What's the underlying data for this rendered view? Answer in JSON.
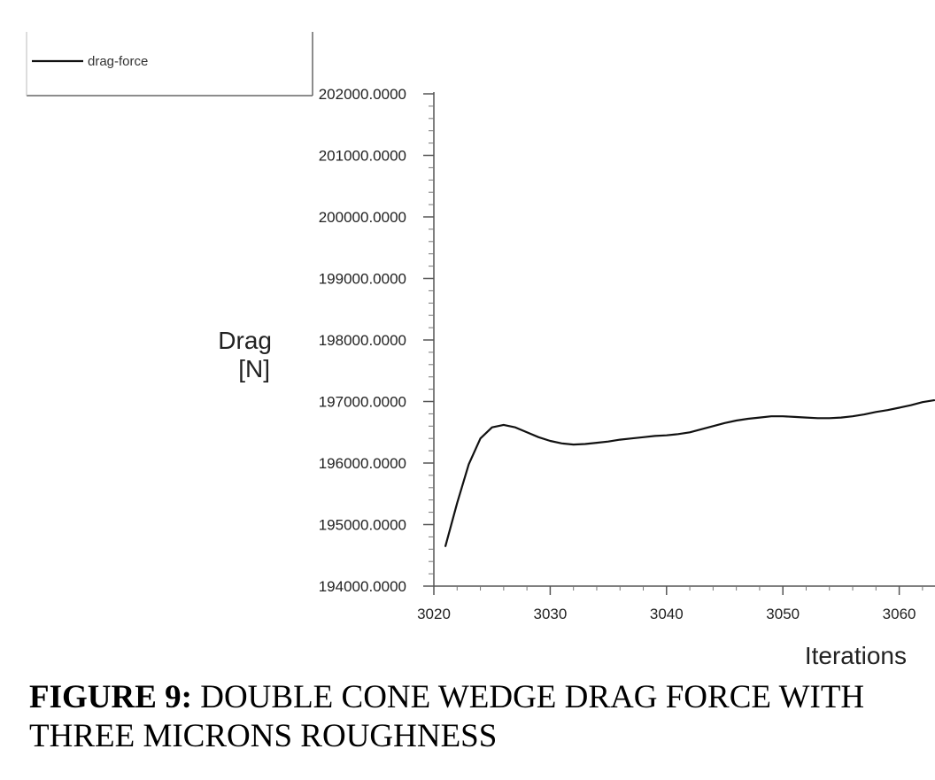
{
  "chart_data": {
    "type": "line",
    "title": "",
    "xlabel": "Iterations",
    "ylabel_lines": [
      "Drag",
      "[N]"
    ],
    "xlim": [
      3020,
      3063
    ],
    "ylim": [
      194000,
      202000
    ],
    "x_ticks": [
      3020,
      3030,
      3040,
      3050,
      3060
    ],
    "x_tick_labels": [
      "3020",
      "3030",
      "3040",
      "3050",
      "3060"
    ],
    "y_ticks": [
      194000,
      195000,
      196000,
      197000,
      198000,
      199000,
      200000,
      201000,
      202000
    ],
    "y_tick_labels": [
      "194000.0000",
      "195000.0000",
      "196000.0000",
      "197000.0000",
      "198000.0000",
      "199000.0000",
      "200000.0000",
      "201000.0000",
      "202000.0000"
    ],
    "grid": false,
    "legend": {
      "placement": "top-left",
      "entries": [
        "drag-force"
      ]
    },
    "series": [
      {
        "name": "drag-force",
        "color": "#111111",
        "x": [
          3021,
          3022,
          3023,
          3024,
          3025,
          3026,
          3027,
          3028,
          3029,
          3030,
          3031,
          3032,
          3033,
          3034,
          3035,
          3036,
          3037,
          3038,
          3039,
          3040,
          3041,
          3042,
          3043,
          3044,
          3045,
          3046,
          3047,
          3048,
          3049,
          3050,
          3051,
          3052,
          3053,
          3054,
          3055,
          3056,
          3057,
          3058,
          3059,
          3060,
          3061,
          3062,
          3063
        ],
        "values": [
          194650,
          195350,
          195980,
          196400,
          196580,
          196620,
          196580,
          196500,
          196420,
          196360,
          196320,
          196300,
          196310,
          196330,
          196350,
          196380,
          196400,
          196420,
          196440,
          196450,
          196470,
          196500,
          196550,
          196600,
          196650,
          196690,
          196720,
          196740,
          196760,
          196760,
          196750,
          196740,
          196730,
          196730,
          196740,
          196760,
          196790,
          196830,
          196860,
          196900,
          196940,
          196990,
          197020
        ]
      }
    ]
  },
  "caption": {
    "label": "FIGURE 9:",
    "text": " DOUBLE CONE WEDGE DRAG FORCE WITH THREE MICRONS ROUGHNESS"
  }
}
